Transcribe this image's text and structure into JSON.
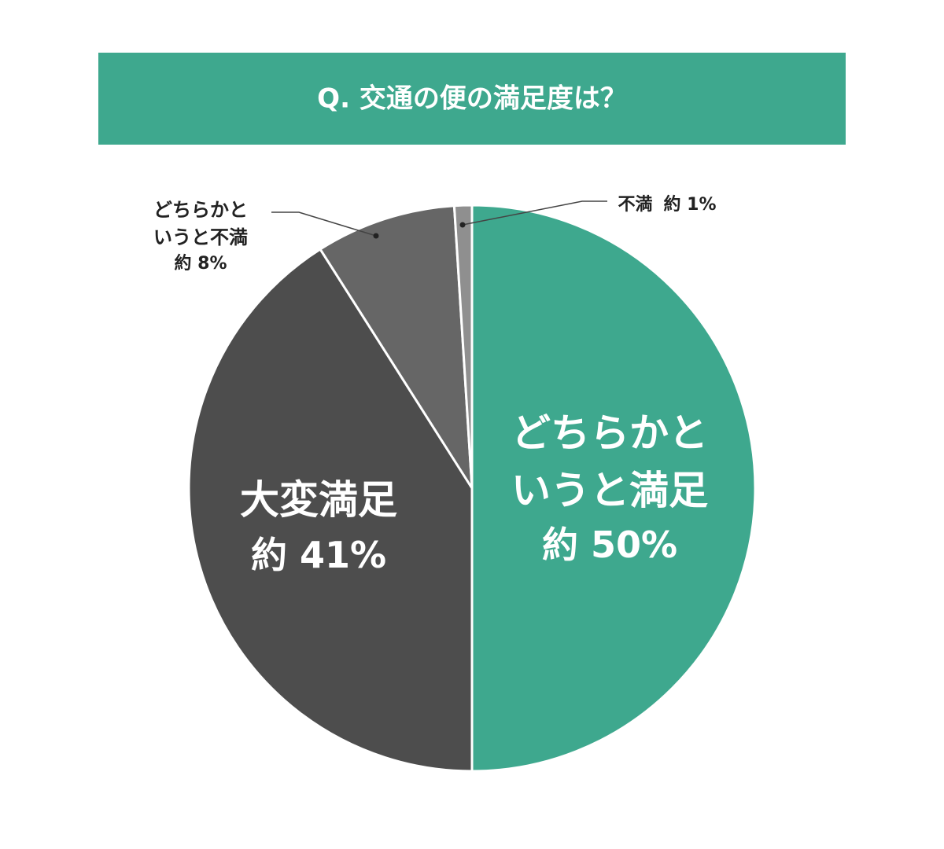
{
  "chart_data": {
    "type": "pie",
    "title": "Q. 交通の便の満足度は？",
    "categories": [
      "どちらかというと満足",
      "大変満足",
      "どちらかというと不満",
      "不満"
    ],
    "values": [
      50,
      41,
      8,
      1
    ],
    "value_labels": [
      "約 50%",
      "約 41%",
      "約 8%",
      "約 1%"
    ],
    "colors": [
      "#3ea88e",
      "#4d4d4d",
      "#666666",
      "#8f8f8f"
    ],
    "title_color": "#3ea88e"
  }
}
